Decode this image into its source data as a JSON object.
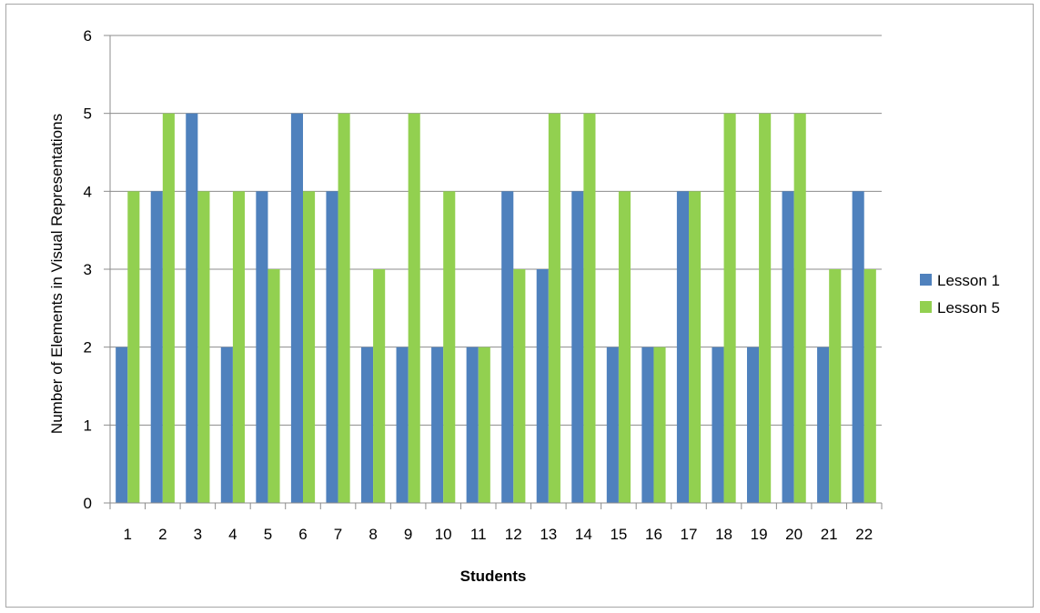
{
  "chart_data": {
    "type": "bar",
    "title": "",
    "xlabel": "Students",
    "ylabel": "Number of Elements in Visual Representations",
    "categories": [
      "1",
      "2",
      "3",
      "4",
      "5",
      "6",
      "7",
      "8",
      "9",
      "10",
      "11",
      "12",
      "13",
      "14",
      "15",
      "16",
      "17",
      "18",
      "19",
      "20",
      "21",
      "22"
    ],
    "series": [
      {
        "name": "Lesson 1",
        "color": "#4f81bd",
        "values": [
          2,
          4,
          5,
          2,
          4,
          5,
          4,
          2,
          2,
          2,
          2,
          4,
          3,
          4,
          2,
          2,
          4,
          2,
          2,
          4,
          2,
          4
        ]
      },
      {
        "name": "Lesson 5",
        "color": "#92d050",
        "values": [
          4,
          5,
          4,
          4,
          3,
          4,
          5,
          3,
          5,
          4,
          2,
          3,
          5,
          5,
          4,
          2,
          4,
          5,
          5,
          5,
          3,
          3
        ]
      }
    ],
    "ylim": [
      0,
      6
    ],
    "yticks": [
      0,
      1,
      2,
      3,
      4,
      5,
      6
    ],
    "grid": true,
    "legend_position": "right"
  }
}
